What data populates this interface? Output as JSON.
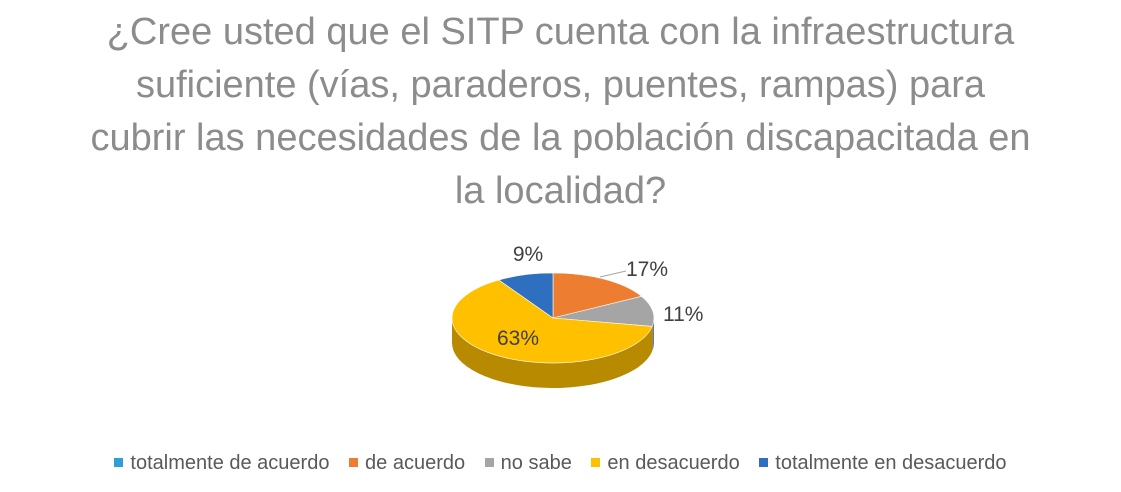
{
  "chart_data": {
    "type": "pie",
    "title_lines": [
      "¿Cree usted que el SITP cuenta con la infraestructura",
      "suficiente (vías, paraderos, puentes, rampas) para",
      "cubrir las necesidades de la población discapacitada en",
      "la localidad?"
    ],
    "three_d": true,
    "legend_position": "bottom",
    "categories": [
      "totalmente de acuerdo",
      "de acuerdo",
      "no sabe",
      "en desacuerdo",
      "totalmente en desacuerdo"
    ],
    "values": [
      0,
      17,
      11,
      63,
      9
    ],
    "data_labels": [
      "",
      "17%",
      "11%",
      "63%",
      "9%"
    ],
    "colors": [
      "#2e9fd8",
      "#ed7d31",
      "#a5a5a5",
      "#ffc000",
      "#2f6fc0"
    ]
  }
}
